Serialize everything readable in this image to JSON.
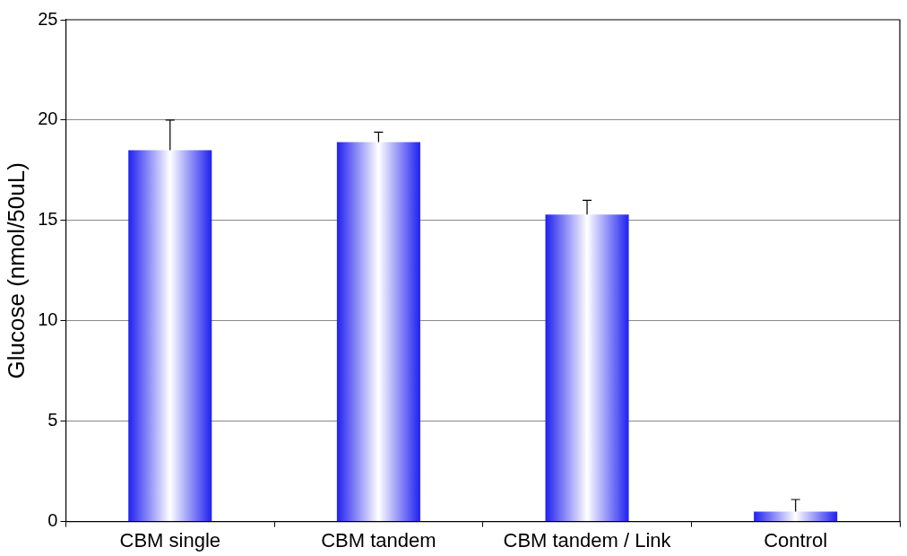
{
  "chart_data": {
    "type": "bar",
    "ylabel": "Glucose (nmol/50uL)",
    "categories": [
      "CBM single",
      "CBM tandem",
      "CBM tandem / Link",
      "Control"
    ],
    "values": [
      18.5,
      18.9,
      15.3,
      0.5
    ],
    "errors": [
      [
        18.5,
        20.0
      ],
      [
        18.9,
        19.4
      ],
      [
        15.3,
        16.0
      ],
      [
        0.5,
        1.1
      ]
    ],
    "color": "#2020f0",
    "ylim": [
      0,
      25
    ],
    "yticks": [
      0,
      5,
      10,
      15,
      20,
      25
    ],
    "grid": "y",
    "legend": false
  }
}
